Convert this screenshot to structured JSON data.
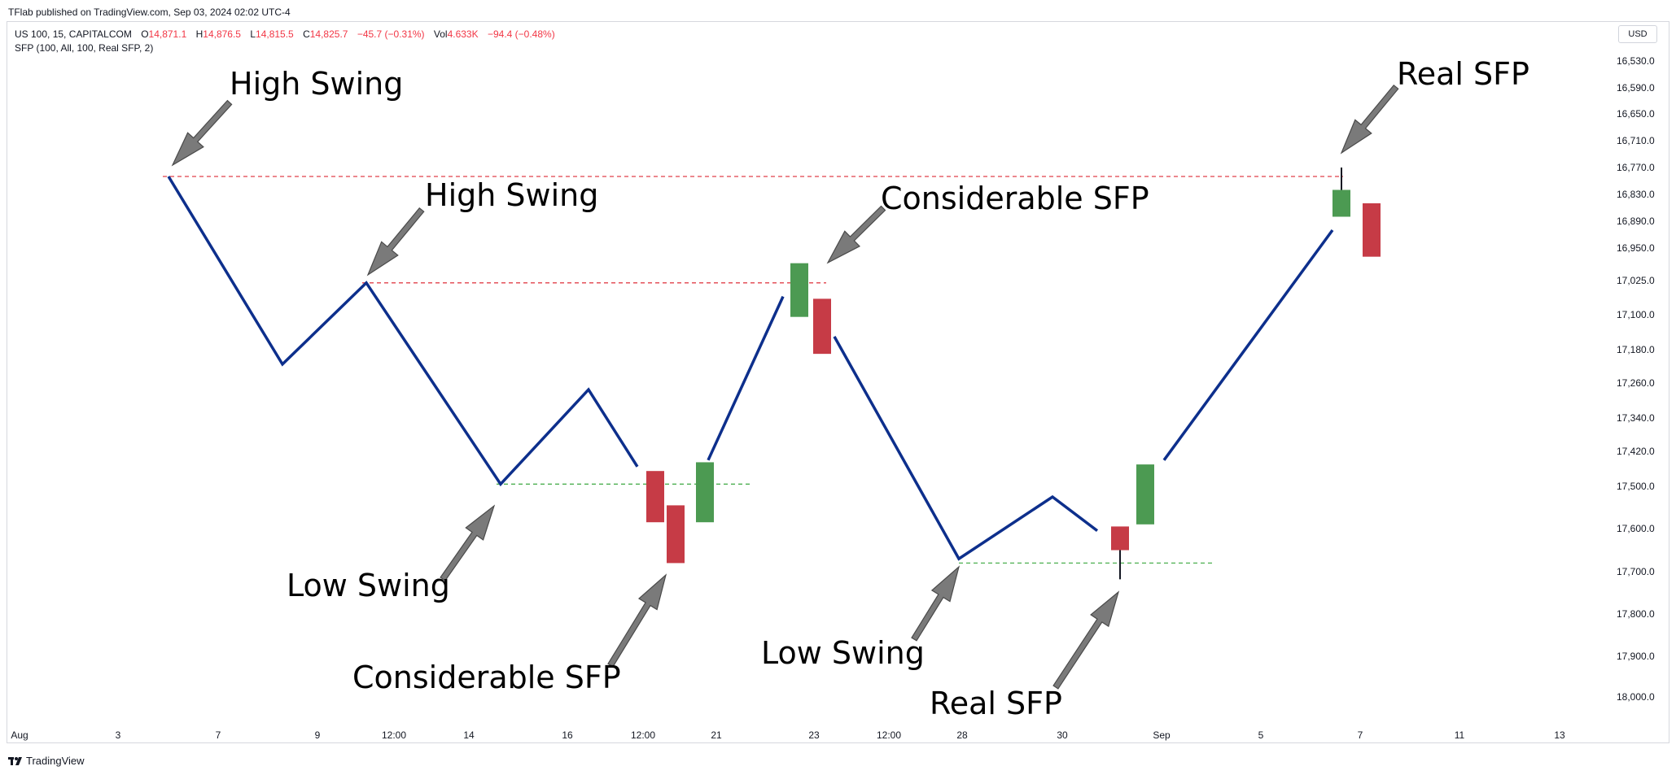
{
  "header": {
    "published": "TFlab published on TradingView.com, Sep 03, 2024 02:02 UTC-4"
  },
  "legend": {
    "symbol": "US 100, 15, CAPITALCOM",
    "o_label": "O",
    "o_value": "14,871.1",
    "h_label": "H",
    "h_value": "14,876.5",
    "l_label": "L",
    "l_value": "14,815.5",
    "c_label": "C",
    "c_value": "14,825.7",
    "change": "−45.7 (−0.31%)",
    "vol_label": "Vol",
    "vol_value": "4.633K",
    "vol_change": "−94.4 (−0.48%)",
    "indicator": "SFP (100, All, 100, Real SFP, 2)"
  },
  "currency": "USD",
  "footer": {
    "brand": "TradingView"
  },
  "colors": {
    "line": "#0d2f8c",
    "bull": "#4c9a52",
    "bear": "#c63b46",
    "high_level": "#e0404a",
    "low_level": "#4caf50",
    "arrow_fill": "#7a7a7a"
  },
  "chart_data": {
    "type": "line",
    "y_axis": {
      "scale": "inverted",
      "ticks": [
        "16,530.0",
        "16,590.0",
        "16,650.0",
        "16,710.0",
        "16,770.0",
        "16,830.0",
        "16,890.0",
        "16,950.0",
        "17,025.0",
        "17,100.0",
        "17,180.0",
        "17,260.0",
        "17,340.0",
        "17,420.0",
        "17,500.0",
        "17,600.0",
        "17,700.0",
        "17,800.0",
        "17,900.0",
        "18,000.0"
      ]
    },
    "x_axis": {
      "ticks": [
        "Aug",
        "3",
        "7",
        "9",
        "12:00",
        "14",
        "16",
        "12:00",
        "21",
        "23",
        "12:00",
        "28",
        "30",
        "Sep",
        "5",
        "7",
        "11",
        "13"
      ]
    },
    "series": [
      {
        "values": [
          16790,
          17215,
          17030,
          17495,
          17275,
          17455
        ]
      },
      {
        "values": [
          17440,
          17060
        ]
      },
      {
        "values": [
          17150,
          17670,
          17525,
          17605
        ]
      },
      {
        "values": [
          17440,
          16910
        ]
      }
    ],
    "candles": [
      {
        "dir": "bear",
        "open": 17465,
        "close": 17585
      },
      {
        "dir": "bear",
        "open": 17545,
        "close": 17680
      },
      {
        "dir": "bull",
        "open": 17585,
        "close": 17445
      },
      {
        "dir": "bull",
        "open": 17105,
        "close": 16985
      },
      {
        "dir": "bear",
        "open": 17065,
        "close": 17190
      },
      {
        "dir": "bear",
        "open": 17595,
        "close": 17650,
        "wick": 17718
      },
      {
        "dir": "bull",
        "open": 17590,
        "close": 17450
      },
      {
        "dir": "bull",
        "open": 16880,
        "close": 16820,
        "wick": 16770
      },
      {
        "dir": "bear",
        "open": 16850,
        "close": 16970
      }
    ],
    "levels": [
      {
        "kind": "high",
        "value": 16790
      },
      {
        "kind": "high",
        "value": 17030
      },
      {
        "kind": "low",
        "value": 17495
      },
      {
        "kind": "low",
        "value": 17680
      }
    ],
    "annotations": [
      {
        "text": "High Swing"
      },
      {
        "text": "High Swing"
      },
      {
        "text": "Low Swing"
      },
      {
        "text": "Considerable SFP"
      },
      {
        "text": "Considerable SFP"
      },
      {
        "text": "Low Swing"
      },
      {
        "text": "Real SFP"
      },
      {
        "text": "Real SFP"
      }
    ]
  }
}
